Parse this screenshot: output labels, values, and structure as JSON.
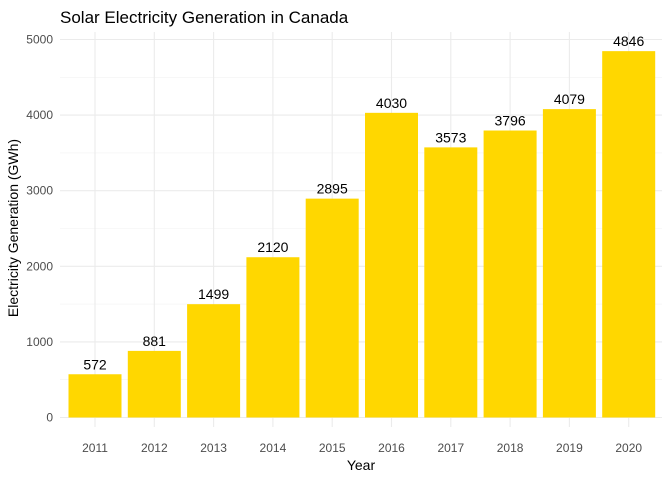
{
  "chart_data": {
    "type": "bar",
    "title": "Solar Electricity Generation in Canada",
    "xlabel": "Year",
    "ylabel": "Electricity Generation (GWh)",
    "categories": [
      "2011",
      "2012",
      "2013",
      "2014",
      "2015",
      "2016",
      "2017",
      "2018",
      "2019",
      "2020"
    ],
    "values": [
      572,
      881,
      1499,
      2120,
      2895,
      4030,
      3573,
      3796,
      4079,
      4846
    ],
    "ylim": [
      0,
      5000
    ],
    "yticks": [
      "0",
      "1000",
      "2000",
      "3000",
      "4000",
      "5000"
    ],
    "grid": true,
    "legend": "none",
    "bar_color": "#FFD700",
    "data_labels": true
  }
}
